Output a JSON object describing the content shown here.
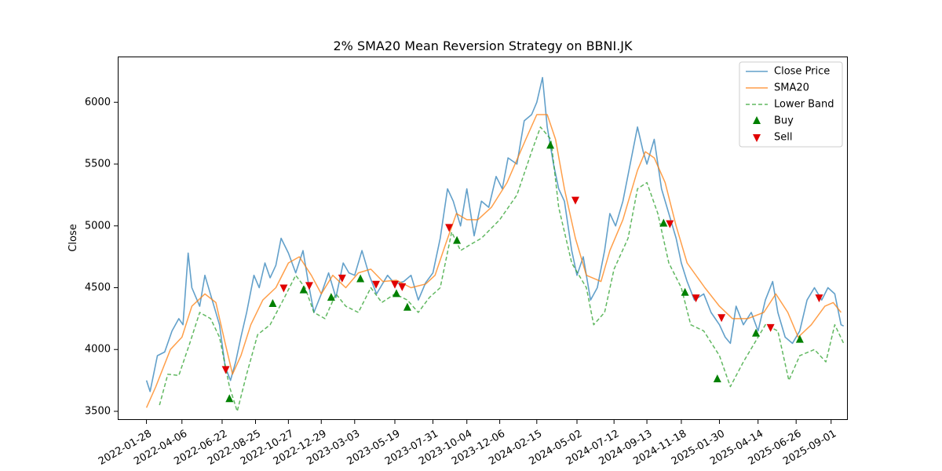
{
  "chart_data": {
    "type": "line",
    "title": "2% SMA20 Mean Reversion Strategy on BBNI.JK",
    "xlabel": "",
    "ylabel": "Close",
    "ylim": [
      3430,
      6370
    ],
    "xlim": [
      "2021-12-04",
      "2025-10-03"
    ],
    "yticks": [
      3500,
      4000,
      4500,
      5000,
      5500,
      6000
    ],
    "xticks": [
      "2022-01-28",
      "2022-04-06",
      "2022-06-22",
      "2022-08-25",
      "2022-10-27",
      "2022-12-29",
      "2023-03-03",
      "2023-05-19",
      "2023-07-31",
      "2023-10-04",
      "2023-12-06",
      "2024-02-15",
      "2024-05-02",
      "2024-07-12",
      "2024-09-13",
      "2024-11-18",
      "2025-01-30",
      "2025-04-14",
      "2025-06-26",
      "2025-09-01"
    ],
    "grid": false,
    "legend_position": "top-right",
    "colors": {
      "close": "#1f77b4",
      "sma": "#ff7f0e",
      "lower": "#2ca02c",
      "buy": "#008000",
      "sell": "#e00000"
    },
    "legend": [
      "Close Price",
      "SMA20",
      "Lower Band",
      "Buy",
      "Sell"
    ],
    "series": [
      {
        "name": "Close Price",
        "style": "solid",
        "points": [
          [
            "2022-01-28",
            3750
          ],
          [
            "2022-02-04",
            3660
          ],
          [
            "2022-02-18",
            3950
          ],
          [
            "2022-03-04",
            3980
          ],
          [
            "2022-03-18",
            4150
          ],
          [
            "2022-03-31",
            4250
          ],
          [
            "2022-04-08",
            4200
          ],
          [
            "2022-04-18",
            4780
          ],
          [
            "2022-04-25",
            4500
          ],
          [
            "2022-05-10",
            4350
          ],
          [
            "2022-05-20",
            4600
          ],
          [
            "2022-06-03",
            4400
          ],
          [
            "2022-06-17",
            4200
          ],
          [
            "2022-06-28",
            3860
          ],
          [
            "2022-07-08",
            3750
          ],
          [
            "2022-07-18",
            3900
          ],
          [
            "2022-07-28",
            4100
          ],
          [
            "2022-08-08",
            4300
          ],
          [
            "2022-08-22",
            4600
          ],
          [
            "2022-09-01",
            4500
          ],
          [
            "2022-09-12",
            4700
          ],
          [
            "2022-09-22",
            4580
          ],
          [
            "2022-10-03",
            4680
          ],
          [
            "2022-10-13",
            4900
          ],
          [
            "2022-10-27",
            4780
          ],
          [
            "2022-11-10",
            4620
          ],
          [
            "2022-11-24",
            4800
          ],
          [
            "2022-12-05",
            4520
          ],
          [
            "2022-12-15",
            4300
          ],
          [
            "2022-12-29",
            4450
          ],
          [
            "2023-01-12",
            4620
          ],
          [
            "2023-01-26",
            4420
          ],
          [
            "2023-02-09",
            4700
          ],
          [
            "2023-02-20",
            4620
          ],
          [
            "2023-03-03",
            4600
          ],
          [
            "2023-03-17",
            4800
          ],
          [
            "2023-03-31",
            4600
          ],
          [
            "2023-04-14",
            4450
          ],
          [
            "2023-05-05",
            4600
          ],
          [
            "2023-05-19",
            4530
          ],
          [
            "2023-06-05",
            4550
          ],
          [
            "2023-06-19",
            4600
          ],
          [
            "2023-07-03",
            4400
          ],
          [
            "2023-07-17",
            4540
          ],
          [
            "2023-07-31",
            4620
          ],
          [
            "2023-08-14",
            4900
          ],
          [
            "2023-08-28",
            5300
          ],
          [
            "2023-09-08",
            5200
          ],
          [
            "2023-09-22",
            5000
          ],
          [
            "2023-10-04",
            5300
          ],
          [
            "2023-10-18",
            4920
          ],
          [
            "2023-11-01",
            5200
          ],
          [
            "2023-11-15",
            5150
          ],
          [
            "2023-11-29",
            5400
          ],
          [
            "2023-12-11",
            5300
          ],
          [
            "2023-12-22",
            5550
          ],
          [
            "2024-01-08",
            5500
          ],
          [
            "2024-01-22",
            5850
          ],
          [
            "2024-02-05",
            5900
          ],
          [
            "2024-02-15",
            6000
          ],
          [
            "2024-02-26",
            6200
          ],
          [
            "2024-03-06",
            5800
          ],
          [
            "2024-03-18",
            5500
          ],
          [
            "2024-03-28",
            5300
          ],
          [
            "2024-04-08",
            5200
          ],
          [
            "2024-04-22",
            4800
          ],
          [
            "2024-05-02",
            4600
          ],
          [
            "2024-05-14",
            4750
          ],
          [
            "2024-05-28",
            4400
          ],
          [
            "2024-06-10",
            4500
          ],
          [
            "2024-06-24",
            4800
          ],
          [
            "2024-07-04",
            5100
          ],
          [
            "2024-07-15",
            5000
          ],
          [
            "2024-07-29",
            5200
          ],
          [
            "2024-08-12",
            5500
          ],
          [
            "2024-08-26",
            5800
          ],
          [
            "2024-09-06",
            5600
          ],
          [
            "2024-09-13",
            5500
          ],
          [
            "2024-09-27",
            5700
          ],
          [
            "2024-10-11",
            5300
          ],
          [
            "2024-10-25",
            5100
          ],
          [
            "2024-11-08",
            4900
          ],
          [
            "2024-11-18",
            4700
          ],
          [
            "2024-11-29",
            4550
          ],
          [
            "2024-12-13",
            4400
          ],
          [
            "2024-12-31",
            4450
          ],
          [
            "2025-01-14",
            4300
          ],
          [
            "2025-01-30",
            4200
          ],
          [
            "2025-02-10",
            4100
          ],
          [
            "2025-02-20",
            4050
          ],
          [
            "2025-03-03",
            4350
          ],
          [
            "2025-03-17",
            4200
          ],
          [
            "2025-04-01",
            4300
          ],
          [
            "2025-04-14",
            4150
          ],
          [
            "2025-04-28",
            4400
          ],
          [
            "2025-05-12",
            4550
          ],
          [
            "2025-05-22",
            4300
          ],
          [
            "2025-06-05",
            4100
          ],
          [
            "2025-06-19",
            4050
          ],
          [
            "2025-07-03",
            4150
          ],
          [
            "2025-07-17",
            4400
          ],
          [
            "2025-07-31",
            4500
          ],
          [
            "2025-08-14",
            4400
          ],
          [
            "2025-08-26",
            4500
          ],
          [
            "2025-09-08",
            4450
          ],
          [
            "2025-09-20",
            4200
          ],
          [
            "2025-09-25",
            4190
          ]
        ]
      },
      {
        "name": "SMA20",
        "style": "solid",
        "points": [
          [
            "2022-01-28",
            3530
          ],
          [
            "2022-02-15",
            3700
          ],
          [
            "2022-03-15",
            4000
          ],
          [
            "2022-04-06",
            4100
          ],
          [
            "2022-04-25",
            4350
          ],
          [
            "2022-05-20",
            4450
          ],
          [
            "2022-06-10",
            4380
          ],
          [
            "2022-06-28",
            4050
          ],
          [
            "2022-07-12",
            3800
          ],
          [
            "2022-07-28",
            3950
          ],
          [
            "2022-08-16",
            4200
          ],
          [
            "2022-09-08",
            4400
          ],
          [
            "2022-10-03",
            4500
          ],
          [
            "2022-10-27",
            4700
          ],
          [
            "2022-11-17",
            4750
          ],
          [
            "2022-12-10",
            4600
          ],
          [
            "2022-12-29",
            4450
          ],
          [
            "2023-01-20",
            4600
          ],
          [
            "2023-02-14",
            4500
          ],
          [
            "2023-03-10",
            4620
          ],
          [
            "2023-04-03",
            4650
          ],
          [
            "2023-04-26",
            4550
          ],
          [
            "2023-05-22",
            4560
          ],
          [
            "2023-06-19",
            4500
          ],
          [
            "2023-07-17",
            4530
          ],
          [
            "2023-08-04",
            4600
          ],
          [
            "2023-08-24",
            4850
          ],
          [
            "2023-09-14",
            5100
          ],
          [
            "2023-10-04",
            5050
          ],
          [
            "2023-10-25",
            5050
          ],
          [
            "2023-11-20",
            5150
          ],
          [
            "2023-12-20",
            5350
          ],
          [
            "2024-01-25",
            5700
          ],
          [
            "2024-02-15",
            5900
          ],
          [
            "2024-03-06",
            5900
          ],
          [
            "2024-03-22",
            5700
          ],
          [
            "2024-04-08",
            5300
          ],
          [
            "2024-04-29",
            4900
          ],
          [
            "2024-05-20",
            4600
          ],
          [
            "2024-06-17",
            4550
          ],
          [
            "2024-07-04",
            4800
          ],
          [
            "2024-07-29",
            5050
          ],
          [
            "2024-08-26",
            5450
          ],
          [
            "2024-09-10",
            5600
          ],
          [
            "2024-09-27",
            5550
          ],
          [
            "2024-10-18",
            5350
          ],
          [
            "2024-11-08",
            5000
          ],
          [
            "2024-11-29",
            4700
          ],
          [
            "2025-01-02",
            4500
          ],
          [
            "2025-01-30",
            4350
          ],
          [
            "2025-02-24",
            4250
          ],
          [
            "2025-03-25",
            4250
          ],
          [
            "2025-04-25",
            4300
          ],
          [
            "2025-05-18",
            4450
          ],
          [
            "2025-06-10",
            4300
          ],
          [
            "2025-06-30",
            4100
          ],
          [
            "2025-07-25",
            4200
          ],
          [
            "2025-08-20",
            4350
          ],
          [
            "2025-09-05",
            4380
          ],
          [
            "2025-09-20",
            4300
          ]
        ]
      },
      {
        "name": "Lower Band",
        "style": "dashed",
        "points": [
          [
            "2022-02-22",
            3550
          ],
          [
            "2022-03-10",
            3800
          ],
          [
            "2022-03-31",
            3790
          ],
          [
            "2022-04-21",
            4050
          ],
          [
            "2022-05-10",
            4300
          ],
          [
            "2022-05-31",
            4250
          ],
          [
            "2022-06-17",
            4100
          ],
          [
            "2022-07-06",
            3700
          ],
          [
            "2022-07-21",
            3500
          ],
          [
            "2022-08-08",
            3800
          ],
          [
            "2022-08-29",
            4120
          ],
          [
            "2022-09-22",
            4200
          ],
          [
            "2022-10-17",
            4400
          ],
          [
            "2022-11-10",
            4600
          ],
          [
            "2022-11-28",
            4500
          ],
          [
            "2022-12-15",
            4300
          ],
          [
            "2023-01-05",
            4250
          ],
          [
            "2023-01-26",
            4450
          ],
          [
            "2023-02-14",
            4350
          ],
          [
            "2023-03-10",
            4300
          ],
          [
            "2023-04-03",
            4500
          ],
          [
            "2023-04-24",
            4380
          ],
          [
            "2023-05-19",
            4450
          ],
          [
            "2023-06-12",
            4400
          ],
          [
            "2023-07-03",
            4300
          ],
          [
            "2023-07-24",
            4420
          ],
          [
            "2023-08-14",
            4500
          ],
          [
            "2023-09-05",
            4950
          ],
          [
            "2023-09-22",
            4800
          ],
          [
            "2023-10-11",
            4850
          ],
          [
            "2023-11-01",
            4900
          ],
          [
            "2023-12-06",
            5050
          ],
          [
            "2024-01-08",
            5250
          ],
          [
            "2024-02-05",
            5600
          ],
          [
            "2024-02-22",
            5800
          ],
          [
            "2024-03-13",
            5700
          ],
          [
            "2024-03-28",
            5150
          ],
          [
            "2024-04-22",
            4700
          ],
          [
            "2024-05-20",
            4500
          ],
          [
            "2024-06-03",
            4200
          ],
          [
            "2024-06-24",
            4300
          ],
          [
            "2024-07-12",
            4650
          ],
          [
            "2024-08-08",
            4900
          ],
          [
            "2024-08-26",
            5300
          ],
          [
            "2024-09-13",
            5350
          ],
          [
            "2024-10-04",
            5100
          ],
          [
            "2024-10-25",
            4700
          ],
          [
            "2024-11-18",
            4500
          ],
          [
            "2024-12-06",
            4200
          ],
          [
            "2024-12-31",
            4150
          ],
          [
            "2025-01-30",
            3950
          ],
          [
            "2025-02-20",
            3700
          ],
          [
            "2025-03-17",
            3900
          ],
          [
            "2025-04-07",
            4050
          ],
          [
            "2025-04-28",
            4200
          ],
          [
            "2025-05-22",
            4150
          ],
          [
            "2025-06-12",
            3750
          ],
          [
            "2025-07-03",
            3950
          ],
          [
            "2025-07-31",
            4000
          ],
          [
            "2025-08-22",
            3900
          ],
          [
            "2025-09-08",
            4200
          ],
          [
            "2025-09-25",
            4050
          ]
        ]
      }
    ],
    "buy_signals": [
      [
        "2022-07-06",
        3600
      ],
      [
        "2022-09-27",
        4370
      ],
      [
        "2022-11-25",
        4480
      ],
      [
        "2023-01-17",
        4420
      ],
      [
        "2023-03-14",
        4570
      ],
      [
        "2023-05-22",
        4450
      ],
      [
        "2023-06-12",
        4340
      ],
      [
        "2023-09-15",
        4880
      ],
      [
        "2024-03-12",
        5650
      ],
      [
        "2024-10-15",
        5020
      ],
      [
        "2024-11-25",
        4460
      ],
      [
        "2025-01-26",
        3760
      ],
      [
        "2025-04-10",
        4130
      ],
      [
        "2025-07-03",
        4080
      ]
    ],
    "sell_signals": [
      [
        "2022-06-29",
        3840
      ],
      [
        "2022-10-18",
        4500
      ],
      [
        "2022-12-06",
        4520
      ],
      [
        "2023-02-07",
        4580
      ],
      [
        "2023-04-13",
        4530
      ],
      [
        "2023-05-19",
        4530
      ],
      [
        "2023-06-02",
        4510
      ],
      [
        "2023-08-31",
        4990
      ],
      [
        "2024-04-29",
        5210
      ],
      [
        "2024-10-27",
        5020
      ],
      [
        "2024-12-16",
        4420
      ],
      [
        "2025-02-03",
        4260
      ],
      [
        "2025-05-08",
        4180
      ],
      [
        "2025-08-09",
        4420
      ]
    ]
  }
}
